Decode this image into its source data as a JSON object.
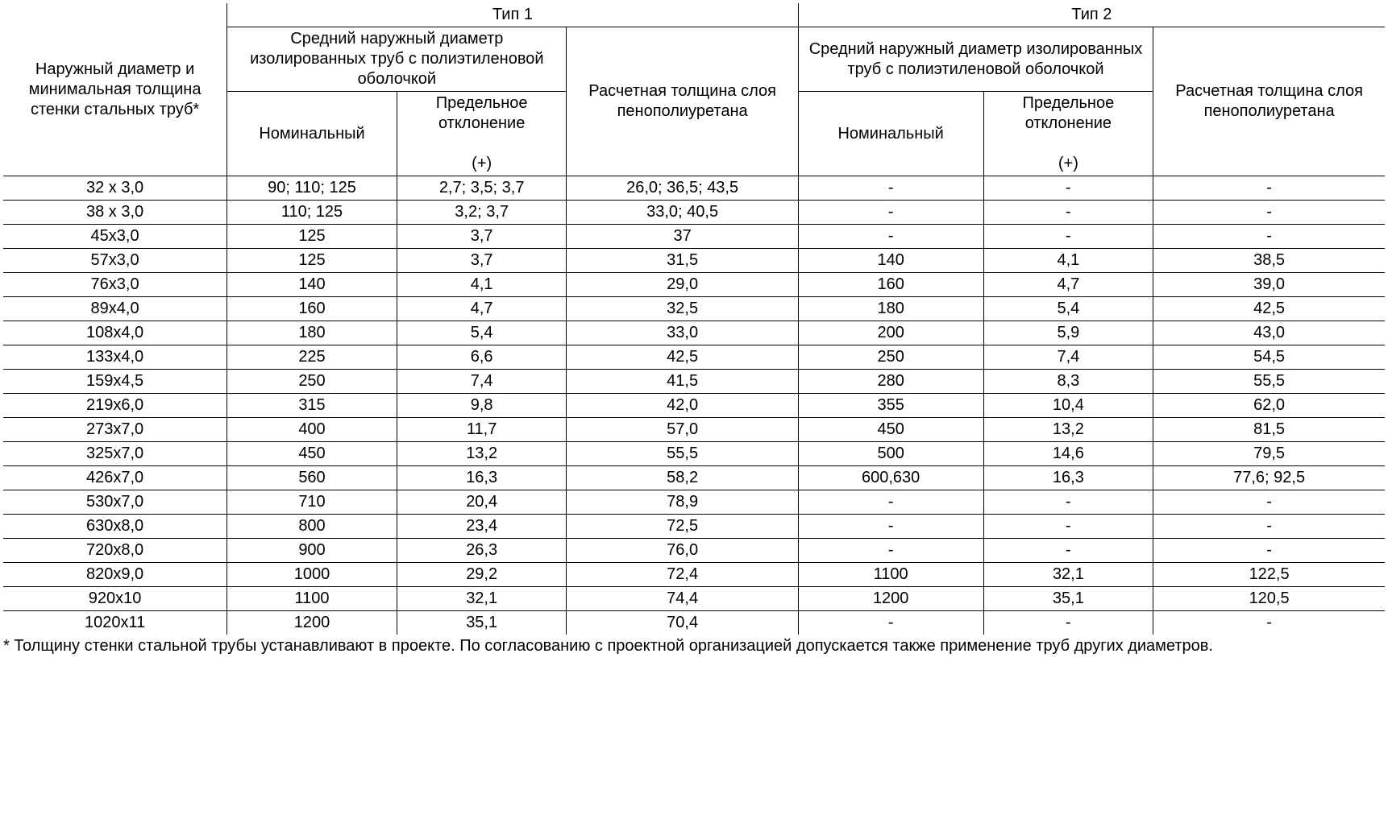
{
  "headers": {
    "col0": "Наружный диаметр и минимальная толщина стенки стальных труб*",
    "type1": "Тип 1",
    "type2": "Тип 2",
    "avg_diam": "Средний наружный диаметр изолированных труб с полиэтиленовой оболочкой",
    "calc_thick": "Расчетная толщина слоя пенополиуретана",
    "nominal": "Номинальный",
    "deviation_line1": "Предельное отклонение",
    "deviation_line2": "(+)"
  },
  "rows": [
    {
      "c": [
        "32 х 3,0",
        "90; 110; 125",
        "2,7; 3,5; 3,7",
        "26,0; 36,5; 43,5",
        "-",
        "-",
        "-"
      ]
    },
    {
      "c": [
        "38 х 3,0",
        "110; 125",
        "3,2; 3,7",
        "33,0; 40,5",
        "-",
        "-",
        "-"
      ]
    },
    {
      "c": [
        "45х3,0",
        "125",
        "3,7",
        "37",
        "-",
        "-",
        "-"
      ]
    },
    {
      "c": [
        "57х3,0",
        "125",
        "3,7",
        "31,5",
        "140",
        "4,1",
        "38,5"
      ]
    },
    {
      "c": [
        "76х3,0",
        "140",
        "4,1",
        "29,0",
        "160",
        "4,7",
        "39,0"
      ]
    },
    {
      "c": [
        "89х4,0",
        "160",
        "4,7",
        "32,5",
        "180",
        "5,4",
        "42,5"
      ]
    },
    {
      "c": [
        "108х4,0",
        "180",
        "5,4",
        "33,0",
        "200",
        "5,9",
        "43,0"
      ]
    },
    {
      "c": [
        "133х4,0",
        "225",
        "6,6",
        "42,5",
        "250",
        "7,4",
        "54,5"
      ]
    },
    {
      "c": [
        "159х4,5",
        "250",
        "7,4",
        "41,5",
        "280",
        "8,3",
        "55,5"
      ]
    },
    {
      "c": [
        "219х6,0",
        "315",
        "9,8",
        "42,0",
        "355",
        "10,4",
        "62,0"
      ]
    },
    {
      "c": [
        "273х7,0",
        "400",
        "11,7",
        "57,0",
        "450",
        "13,2",
        "81,5"
      ]
    },
    {
      "c": [
        "325х7,0",
        "450",
        "13,2",
        "55,5",
        "500",
        "14,6",
        "79,5"
      ]
    },
    {
      "c": [
        "426х7,0",
        "560",
        "16,3",
        "58,2",
        "600,630",
        "16,3",
        "77,6; 92,5"
      ]
    },
    {
      "c": [
        "530х7,0",
        "710",
        "20,4",
        "78,9",
        "-",
        "-",
        "-"
      ]
    },
    {
      "c": [
        "630х8,0",
        "800",
        "23,4",
        "72,5",
        "-",
        "-",
        "-"
      ]
    },
    {
      "c": [
        "720х8,0",
        "900",
        "26,3",
        "76,0",
        "-",
        "-",
        "-"
      ]
    },
    {
      "c": [
        "820х9,0",
        "1000",
        "29,2",
        "72,4",
        "1100",
        "32,1",
        "122,5"
      ]
    },
    {
      "c": [
        "920х10",
        "1100",
        "32,1",
        "74,4",
        "1200",
        "35,1",
        "120,5"
      ]
    },
    {
      "c": [
        "1020х11",
        "1200",
        "35,1",
        "70,4",
        "-",
        "-",
        "-"
      ]
    }
  ],
  "footnote": "* Толщину стенки стальной трубы устанавливают в проекте. По согласованию с проектной организацией допускается также применение труб других диаметров.",
  "style": {
    "font_family": "Arial",
    "font_size_pt": 15,
    "text_color": "#000000",
    "border_color": "#000000",
    "background_color": "#ffffff"
  }
}
